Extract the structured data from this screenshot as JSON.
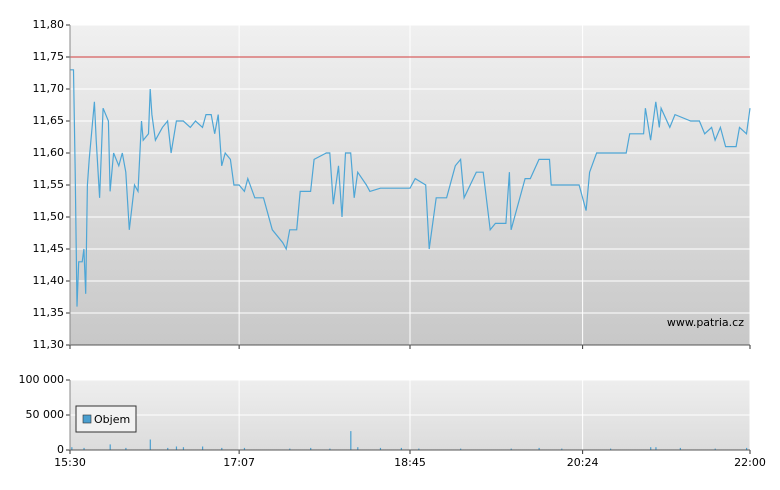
{
  "chart_data": [
    {
      "type": "line",
      "color": "#4ea6d6",
      "ref_line": 11.75,
      "ref_color": "#d23b3b",
      "grid": true,
      "watermark": "www.patria.cz",
      "x": [
        "15:30",
        "15:32",
        "15:33",
        "15:34",
        "15:35",
        "15:37",
        "15:38",
        "15:39",
        "15:40",
        "15:41",
        "15:44",
        "15:45",
        "15:47",
        "15:49",
        "15:52",
        "15:53",
        "15:55",
        "15:58",
        "16:00",
        "16:02",
        "16:04",
        "16:07",
        "16:09",
        "16:11",
        "16:12",
        "16:15",
        "16:16",
        "16:17",
        "16:19",
        "16:23",
        "16:26",
        "16:28",
        "16:31",
        "16:35",
        "16:39",
        "16:42",
        "16:46",
        "16:48",
        "16:51",
        "16:53",
        "16:55",
        "16:57",
        "16:59",
        "17:02",
        "17:04",
        "17:07",
        "17:10",
        "17:12",
        "17:16",
        "17:21",
        "17:26",
        "17:32",
        "17:34",
        "17:36",
        "17:40",
        "17:42",
        "17:48",
        "17:50",
        "17:57",
        "17:59",
        "18:01",
        "18:04",
        "18:06",
        "18:08",
        "18:11",
        "18:13",
        "18:15",
        "18:20",
        "18:22",
        "18:28",
        "18:45",
        "18:48",
        "18:54",
        "18:56",
        "19:00",
        "19:06",
        "19:11",
        "19:14",
        "19:16",
        "19:23",
        "19:27",
        "19:31",
        "19:34",
        "19:40",
        "19:42",
        "19:43",
        "19:51",
        "19:54",
        "19:59",
        "20:05",
        "20:06",
        "20:22",
        "20:26",
        "20:28",
        "20:32",
        "20:49",
        "20:51",
        "20:59",
        "21:00",
        "21:03",
        "21:06",
        "21:08",
        "21:09",
        "21:14",
        "21:17",
        "21:26",
        "21:31",
        "21:34",
        "21:38",
        "21:40",
        "21:43",
        "21:46",
        "21:52",
        "21:54",
        "21:58",
        "22:00"
      ],
      "values": [
        11.73,
        11.73,
        11.57,
        11.36,
        11.43,
        11.43,
        11.45,
        11.38,
        11.55,
        11.59,
        11.68,
        11.62,
        11.53,
        11.67,
        11.65,
        11.54,
        11.6,
        11.58,
        11.6,
        11.57,
        11.48,
        11.55,
        11.54,
        11.65,
        11.62,
        11.63,
        11.7,
        11.66,
        11.62,
        11.64,
        11.65,
        11.6,
        11.65,
        11.65,
        11.64,
        11.65,
        11.64,
        11.66,
        11.66,
        11.63,
        11.66,
        11.58,
        11.6,
        11.59,
        11.55,
        11.55,
        11.54,
        11.56,
        11.53,
        11.53,
        11.48,
        11.46,
        11.45,
        11.48,
        11.48,
        11.54,
        11.54,
        11.59,
        11.6,
        11.6,
        11.52,
        11.58,
        11.5,
        11.6,
        11.6,
        11.53,
        11.57,
        11.55,
        11.54,
        11.545,
        11.545,
        11.56,
        11.55,
        11.45,
        11.53,
        11.53,
        11.58,
        11.59,
        11.53,
        11.57,
        11.57,
        11.48,
        11.49,
        11.49,
        11.57,
        11.48,
        11.56,
        11.56,
        11.59,
        11.59,
        11.55,
        11.55,
        11.51,
        11.57,
        11.6,
        11.6,
        11.63,
        11.63,
        11.67,
        11.62,
        11.68,
        11.64,
        11.67,
        11.64,
        11.66,
        11.65,
        11.65,
        11.63,
        11.64,
        11.62,
        11.64,
        11.61,
        11.61,
        11.64,
        11.63,
        11.67
      ],
      "ylim": [
        11.3,
        11.8
      ],
      "yticks": [
        {
          "value": 11.3,
          "label": "11,30"
        },
        {
          "value": 11.35,
          "label": "11,35"
        },
        {
          "value": 11.4,
          "label": "11,40"
        },
        {
          "value": 11.45,
          "label": "11,45"
        },
        {
          "value": 11.5,
          "label": "11,50"
        },
        {
          "value": 11.55,
          "label": "11,55"
        },
        {
          "value": 11.6,
          "label": "11,60"
        },
        {
          "value": 11.65,
          "label": "11,65"
        },
        {
          "value": 11.7,
          "label": "11,70"
        },
        {
          "value": 11.75,
          "label": "11,75"
        },
        {
          "value": 11.8,
          "label": "11,80"
        }
      ]
    },
    {
      "type": "bar",
      "grid": true,
      "legend": "bottom-left",
      "xlim": [
        "15:30",
        "22:00"
      ],
      "xticks": [
        "15:30",
        "17:07",
        "18:45",
        "20:24",
        "22:00"
      ],
      "ylim": [
        0,
        100000
      ],
      "yticks": [
        0,
        {
          "value": 50000,
          "label": "50 000"
        },
        {
          "value": 100000,
          "label": "100 000"
        }
      ],
      "series": [
        {
          "name": "Objem",
          "color": "#4a9fd0",
          "x": [
            "15:31",
            "15:38",
            "15:53",
            "16:02",
            "16:16",
            "16:26",
            "16:31",
            "16:35",
            "16:46",
            "16:57",
            "17:10",
            "17:36",
            "17:48",
            "17:59",
            "18:11",
            "18:15",
            "18:28",
            "18:40",
            "18:50",
            "19:14",
            "19:43",
            "19:59",
            "20:12",
            "20:40",
            "21:03",
            "21:06",
            "21:20",
            "21:40",
            "21:58"
          ],
          "values": [
            4000,
            3000,
            8000,
            3000,
            15000,
            3000,
            5000,
            4000,
            5000,
            3000,
            3000,
            2000,
            3000,
            2000,
            27000,
            4000,
            3000,
            3000,
            2000,
            2000,
            2000,
            3000,
            2000,
            2000,
            4000,
            4000,
            3000,
            2000,
            3000
          ]
        }
      ]
    }
  ]
}
